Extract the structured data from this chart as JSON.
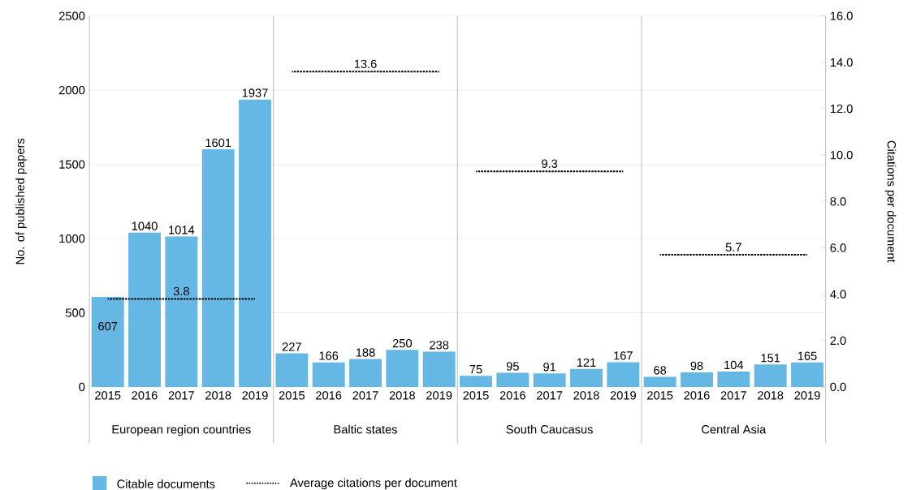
{
  "chart_data": {
    "type": "bar",
    "ylabel": "No. of published papers",
    "y2label": "Citations per document",
    "categories": [
      "2015",
      "2016",
      "2017",
      "2018",
      "2019",
      "2015",
      "2016",
      "2017",
      "2018",
      "2019",
      "2015",
      "2016",
      "2017",
      "2018",
      "2019",
      "2015",
      "2016",
      "2017",
      "2018",
      "2019"
    ],
    "annotations": [
      "European region countries",
      "Baltic states",
      "South Caucasus",
      "Central Asia"
    ],
    "series": [
      {
        "name": "Citable documents",
        "color": "#66b8e4",
        "values": [
          607,
          1040,
          1014,
          1601,
          1937,
          227,
          166,
          188,
          250,
          238,
          75,
          95,
          91,
          121,
          167,
          68,
          98,
          104,
          151,
          165
        ],
        "value_labels": [
          "607",
          "1040",
          "1014",
          "1601",
          "1937",
          "227",
          "166",
          "188",
          "250",
          "238",
          "75",
          "95",
          "91",
          "121",
          "167",
          "68",
          "98",
          "104",
          "151",
          "165"
        ]
      },
      {
        "name": "Average citations per document",
        "type": "line",
        "axis": "y2",
        "color": "#000000",
        "line_style": "dotted",
        "marker": "none",
        "values": [
          3.8,
          3.8,
          3.8,
          3.8,
          3.8,
          null,
          null,
          null,
          null,
          null,
          null,
          null,
          null,
          null,
          null,
          null,
          null,
          null,
          null,
          null
        ],
        "value_labels": [
          null,
          null,
          "3.8",
          null,
          null,
          null,
          null,
          null,
          null,
          null,
          null,
          null,
          null,
          null,
          null,
          null,
          null,
          null,
          null,
          null
        ]
      },
      {
        "type": "line",
        "axis": "y2",
        "color": "#000000",
        "line_style": "dotted",
        "values": [
          null,
          null,
          null,
          null,
          null,
          13.6,
          13.6,
          13.6,
          13.6,
          13.6,
          null,
          null,
          null,
          null,
          null,
          null,
          null,
          null,
          null,
          null
        ],
        "value_labels": [
          null,
          null,
          null,
          null,
          null,
          null,
          null,
          "13.6",
          null,
          null,
          null,
          null,
          null,
          null,
          null,
          null,
          null,
          null,
          null,
          null
        ]
      },
      {
        "type": "line",
        "axis": "y2",
        "color": "#000000",
        "line_style": "dotted",
        "values": [
          null,
          null,
          null,
          null,
          null,
          null,
          null,
          null,
          null,
          null,
          9.3,
          9.3,
          9.3,
          9.3,
          9.3,
          null,
          null,
          null,
          null,
          null
        ],
        "value_labels": [
          null,
          null,
          null,
          null,
          null,
          null,
          null,
          null,
          null,
          null,
          null,
          null,
          "9.3",
          null,
          null,
          null,
          null,
          null,
          null,
          null
        ]
      },
      {
        "type": "line",
        "axis": "y2",
        "color": "#000000",
        "line_style": "dotted",
        "values": [
          null,
          null,
          null,
          null,
          null,
          null,
          null,
          null,
          null,
          null,
          null,
          null,
          null,
          null,
          null,
          5.7,
          5.7,
          5.7,
          5.7,
          5.7
        ],
        "value_labels": [
          null,
          null,
          null,
          null,
          null,
          null,
          null,
          null,
          null,
          null,
          null,
          null,
          null,
          null,
          null,
          null,
          null,
          "5.7",
          null,
          null
        ]
      }
    ],
    "ylim": [
      0,
      2500
    ],
    "yticks": [
      0,
      500,
      1000,
      1500,
      2000,
      2500
    ],
    "y2lim": [
      0,
      16
    ],
    "y2ticks": [
      {
        "value": 0,
        "label": "0.0"
      },
      {
        "value": 2,
        "label": "2.0"
      },
      {
        "value": 4,
        "label": "4.0"
      },
      {
        "value": 6,
        "label": "6.0"
      },
      {
        "value": 8,
        "label": "8.0"
      },
      {
        "value": 10,
        "label": "10.0"
      },
      {
        "value": 12,
        "label": "12.0"
      },
      {
        "value": 14,
        "label": "14.0"
      },
      {
        "value": 16,
        "label": "16.0"
      }
    ],
    "grid": "y",
    "legend": "bottom left"
  }
}
